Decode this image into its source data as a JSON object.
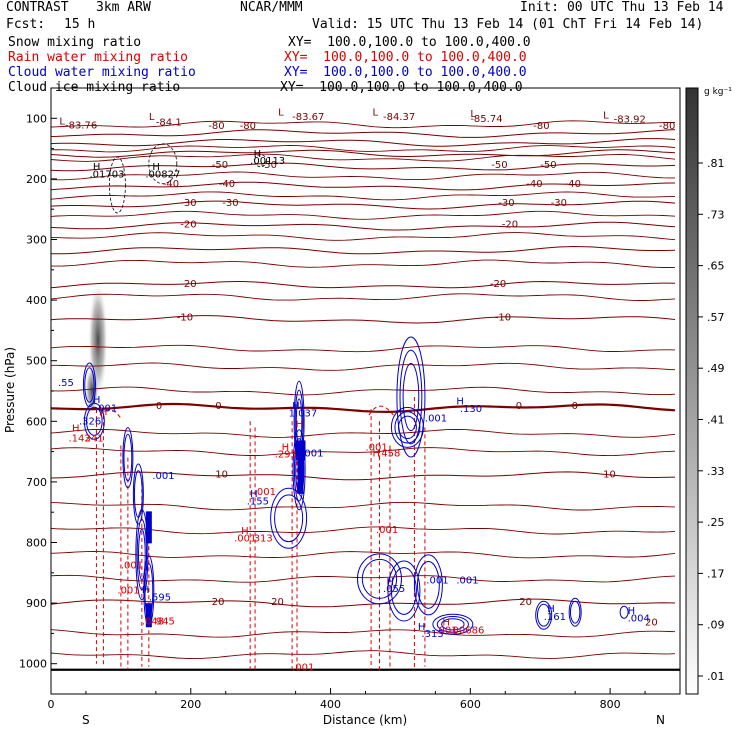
{
  "header": {
    "experiment": "CONTRAST",
    "model": "3km ARW",
    "source": "NCAR/MMM",
    "init": "Init: 00 UTC Thu 13 Feb 14",
    "fcst_label": "Fcst:",
    "fcst_value": "15 h",
    "valid": "Valid: 15 UTC Thu 13 Feb 14 (01 ChT Fri 14 Feb 14)"
  },
  "colors": {
    "snow": "#000000",
    "rain": "#dd0000",
    "cloud_water": "#0000cc",
    "cloud_ice": "#000000",
    "temperature": "#7a0000",
    "frame": "#000000"
  },
  "fields": [
    {
      "name": "Snow mixing ratio",
      "xy": "",
      "color": "#000000"
    },
    {
      "name": "Rain water mixing ratio",
      "xy": "XY=  100.0,100.0 to 100.0,400.0",
      "color": "#dd0000"
    },
    {
      "name": "Cloud water mixing ratio",
      "xy": "XY=  100.0,100.0 to 100.0,400.0",
      "color": "#0000cc"
    },
    {
      "name": "Cloud ice mixing ratio",
      "xy": "XY=  100.0,100.0 to 100.0,400.0",
      "color": "#000000"
    }
  ],
  "snow_xy": "XY=  100.0,100.0 to 100.0,400.0",
  "colorbar": {
    "unit": "g kg⁻¹",
    "labels": [
      ".81",
      ".73",
      ".65",
      ".57",
      ".49",
      ".41",
      ".33",
      ".25",
      ".17",
      ".09",
      ".01"
    ]
  },
  "chart_data": {
    "type": "contour",
    "xlabel": "Distance (km)",
    "ylabel": "Pressure (hPa)",
    "xlim": [
      0,
      900
    ],
    "ylim": [
      1050,
      50
    ],
    "x_ticks": [
      0,
      200,
      400,
      600,
      800
    ],
    "y_ticks": [
      100,
      200,
      300,
      400,
      500,
      600,
      700,
      800,
      900,
      1000
    ],
    "x_end_labels": {
      "left": "S",
      "right": "N"
    },
    "temperature_contours_C": [
      {
        "value": -80,
        "p": 125
      },
      {
        "value": -70,
        "p": 140
      },
      {
        "value": -60,
        "p": 158
      },
      {
        "value": -50,
        "p": 180
      },
      {
        "value": -40,
        "p": 212
      },
      {
        "value": -30,
        "p": 243
      },
      {
        "value": -20,
        "p": 278
      },
      {
        "value": -10,
        "p": 318
      },
      {
        "value": -20,
        "p": 375
      },
      {
        "value": -10,
        "p": 432
      },
      {
        "value": 0,
        "p": 578
      },
      {
        "value": 10,
        "p": 690
      },
      {
        "value": 20,
        "p": 900
      }
    ],
    "temperature_labels": [
      {
        "x": 12,
        "p": 110,
        "text": "L"
      },
      {
        "x": 20,
        "p": 117,
        "text": "-83.76"
      },
      {
        "x": 140,
        "p": 103,
        "text": "L"
      },
      {
        "x": 150,
        "p": 112,
        "text": "-84.1"
      },
      {
        "x": 225,
        "p": 118,
        "text": "-80"
      },
      {
        "x": 270,
        "p": 118,
        "text": "-80"
      },
      {
        "x": 325,
        "p": 95,
        "text": "L"
      },
      {
        "x": 345,
        "p": 103,
        "text": "-83.67"
      },
      {
        "x": 460,
        "p": 95,
        "text": "L"
      },
      {
        "x": 475,
        "p": 103,
        "text": "-84.37"
      },
      {
        "x": 600,
        "p": 98,
        "text": "L"
      },
      {
        "x": 600,
        "p": 106,
        "text": "-85.74"
      },
      {
        "x": 690,
        "p": 118,
        "text": "-80"
      },
      {
        "x": 790,
        "p": 100,
        "text": "L"
      },
      {
        "x": 805,
        "p": 107,
        "text": "-83.92"
      },
      {
        "x": 870,
        "p": 118,
        "text": "-80"
      },
      {
        "x": 230,
        "p": 182,
        "text": "-50"
      },
      {
        "x": 300,
        "p": 182,
        "text": "-50"
      },
      {
        "x": 630,
        "p": 182,
        "text": "-50"
      },
      {
        "x": 700,
        "p": 182,
        "text": "-50"
      },
      {
        "x": 160,
        "p": 213,
        "text": "-40"
      },
      {
        "x": 240,
        "p": 213,
        "text": "-40"
      },
      {
        "x": 680,
        "p": 213,
        "text": "-40"
      },
      {
        "x": 735,
        "p": 213,
        "text": "-40"
      },
      {
        "x": 185,
        "p": 245,
        "text": "-30"
      },
      {
        "x": 245,
        "p": 245,
        "text": "-30"
      },
      {
        "x": 640,
        "p": 245,
        "text": "-30"
      },
      {
        "x": 715,
        "p": 245,
        "text": "-30"
      },
      {
        "x": 185,
        "p": 280,
        "text": "-20"
      },
      {
        "x": 645,
        "p": 280,
        "text": "-20"
      },
      {
        "x": 185,
        "p": 378,
        "text": "-20"
      },
      {
        "x": 628,
        "p": 378,
        "text": "-20"
      },
      {
        "x": 180,
        "p": 434,
        "text": "-10"
      },
      {
        "x": 635,
        "p": 434,
        "text": "-10"
      },
      {
        "x": 150,
        "p": 580,
        "text": "0"
      },
      {
        "x": 235,
        "p": 580,
        "text": "0"
      },
      {
        "x": 665,
        "p": 580,
        "text": "0"
      },
      {
        "x": 745,
        "p": 580,
        "text": "0"
      },
      {
        "x": 235,
        "p": 693,
        "text": "10"
      },
      {
        "x": 790,
        "p": 693,
        "text": "10"
      },
      {
        "x": 230,
        "p": 903,
        "text": "20"
      },
      {
        "x": 315,
        "p": 903,
        "text": "20"
      },
      {
        "x": 670,
        "p": 903,
        "text": "20"
      },
      {
        "x": 850,
        "p": 937,
        "text": "20"
      }
    ],
    "snow_labels": [
      {
        "x": 60,
        "p": 185,
        "text": "H"
      },
      {
        "x": 55,
        "p": 198,
        "text": ".01703"
      },
      {
        "x": 145,
        "p": 185,
        "text": "H"
      },
      {
        "x": 135,
        "p": 198,
        "text": ".00827"
      },
      {
        "x": 290,
        "p": 164,
        "text": "H"
      },
      {
        "x": 285,
        "p": 175,
        "text": ".00113"
      }
    ],
    "rain_labels": [
      {
        "x": 70,
        "p": 590,
        "text": "H"
      },
      {
        "x": 30,
        "p": 617,
        "text": "H"
      },
      {
        "x": 25,
        "p": 633,
        "text": ".143"
      },
      {
        "x": 48,
        "p": 633,
        "text": "241"
      },
      {
        "x": 350,
        "p": 610,
        "text": "H"
      },
      {
        "x": 330,
        "p": 648,
        "text": "H"
      },
      {
        "x": 320,
        "p": 660,
        "text": ".293"
      },
      {
        "x": 450,
        "p": 648,
        "text": ".001"
      },
      {
        "x": 460,
        "p": 658,
        "text": "H"
      },
      {
        "x": 468,
        "p": 658,
        "text": ".458"
      },
      {
        "x": 290,
        "p": 722,
        "text": ".001"
      },
      {
        "x": 272,
        "p": 786,
        "text": "H"
      },
      {
        "x": 262,
        "p": 798,
        "text": ".001"
      },
      {
        "x": 290,
        "p": 798,
        "text": "313"
      },
      {
        "x": 465,
        "p": 784,
        "text": ".001"
      },
      {
        "x": 100,
        "p": 843,
        "text": ".001"
      },
      {
        "x": 95,
        "p": 884,
        "text": ".001"
      },
      {
        "x": 130,
        "p": 935,
        "text": ".048"
      },
      {
        "x": 150,
        "p": 935,
        "text": "945"
      },
      {
        "x": 560,
        "p": 937,
        "text": "H"
      },
      {
        "x": 550,
        "p": 950,
        "text": ".001"
      },
      {
        "x": 570,
        "p": 950,
        "text": ".00686"
      },
      {
        "x": 345,
        "p": 1011,
        "text": ".001"
      }
    ],
    "cloud_water_labels": [
      {
        "x": 10,
        "p": 542,
        "text": ".55"
      },
      {
        "x": 60,
        "p": 570,
        "text": "H"
      },
      {
        "x": 63,
        "p": 584,
        "text": ".001"
      },
      {
        "x": 40,
        "p": 605,
        "text": ".326"
      },
      {
        "x": 345,
        "p": 580,
        "text": "H"
      },
      {
        "x": 340,
        "p": 592,
        "text": "1.037"
      },
      {
        "x": 358,
        "p": 658,
        "text": ".001"
      },
      {
        "x": 580,
        "p": 572,
        "text": "H"
      },
      {
        "x": 585,
        "p": 585,
        "text": ".130"
      },
      {
        "x": 535,
        "p": 600,
        "text": ".001"
      },
      {
        "x": 145,
        "p": 695,
        "text": ".001"
      },
      {
        "x": 285,
        "p": 725,
        "text": "H"
      },
      {
        "x": 280,
        "p": 737,
        "text": ".155"
      },
      {
        "x": 130,
        "p": 883,
        "text": "H"
      },
      {
        "x": 140,
        "p": 896,
        "text": ".595"
      },
      {
        "x": 480,
        "p": 870,
        "text": "H"
      },
      {
        "x": 475,
        "p": 882,
        "text": ".055"
      },
      {
        "x": 537,
        "p": 868,
        "text": ".001"
      },
      {
        "x": 580,
        "p": 868,
        "text": ".001"
      },
      {
        "x": 525,
        "p": 944,
        "text": "H"
      },
      {
        "x": 530,
        "p": 956,
        "text": ".313"
      },
      {
        "x": 710,
        "p": 915,
        "text": "H"
      },
      {
        "x": 705,
        "p": 928,
        "text": ".161"
      },
      {
        "x": 825,
        "p": 918,
        "text": "H"
      },
      {
        "x": 825,
        "p": 930,
        "text": ".004"
      }
    ]
  }
}
